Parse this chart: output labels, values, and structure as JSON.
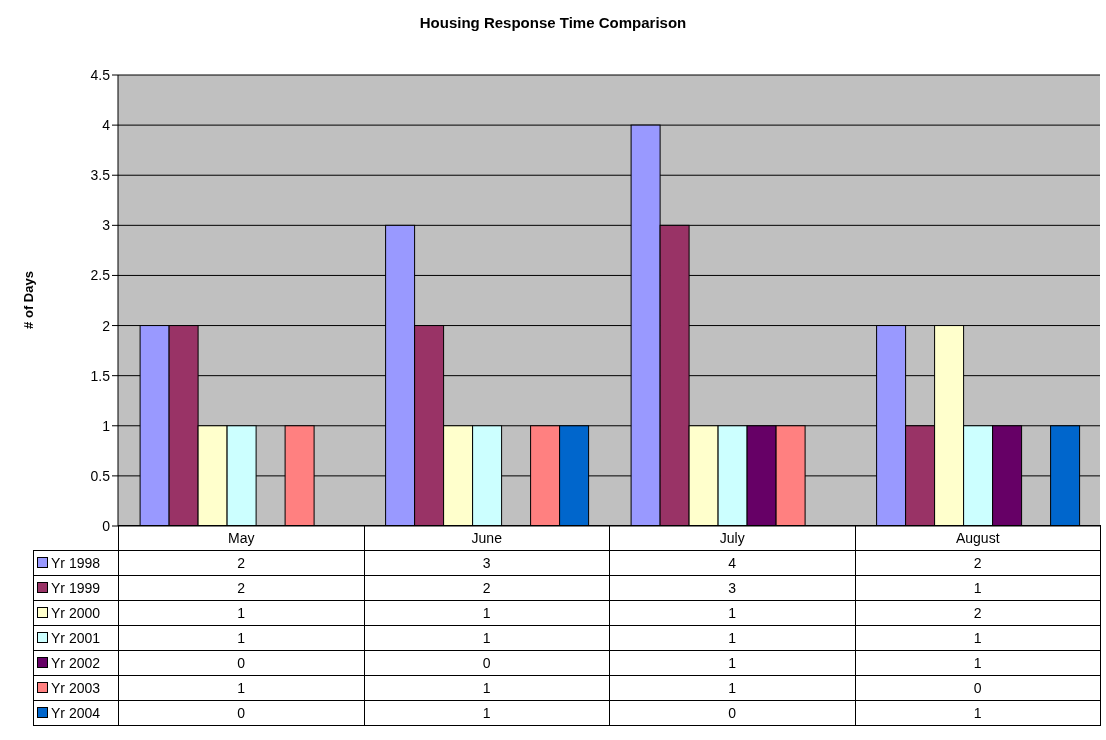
{
  "chart_data": {
    "type": "bar",
    "title": "Housing Response Time Comparison",
    "ylabel": "# of Days",
    "categories": [
      "May",
      "June",
      "July",
      "August"
    ],
    "series": [
      {
        "name": "Yr 1998",
        "color": "#9999ff",
        "values": [
          2,
          3,
          4,
          2
        ]
      },
      {
        "name": "Yr 1999",
        "color": "#993366",
        "values": [
          2,
          2,
          3,
          1
        ]
      },
      {
        "name": "Yr 2000",
        "color": "#ffffcc",
        "values": [
          1,
          1,
          1,
          2
        ]
      },
      {
        "name": "Yr 2001",
        "color": "#ccffff",
        "values": [
          1,
          1,
          1,
          1
        ]
      },
      {
        "name": "Yr 2002",
        "color": "#660066",
        "values": [
          0,
          0,
          1,
          1
        ]
      },
      {
        "name": "Yr 2003",
        "color": "#ff8080",
        "values": [
          1,
          1,
          1,
          0
        ]
      },
      {
        "name": "Yr 2004",
        "color": "#0066cc",
        "values": [
          0,
          1,
          0,
          1
        ]
      }
    ],
    "ylim": [
      0,
      4.5
    ],
    "yticks": [
      0,
      0.5,
      1,
      1.5,
      2,
      2.5,
      3,
      3.5,
      4,
      4.5
    ],
    "grid": "y",
    "legend": "bottom",
    "data_labels": true
  }
}
